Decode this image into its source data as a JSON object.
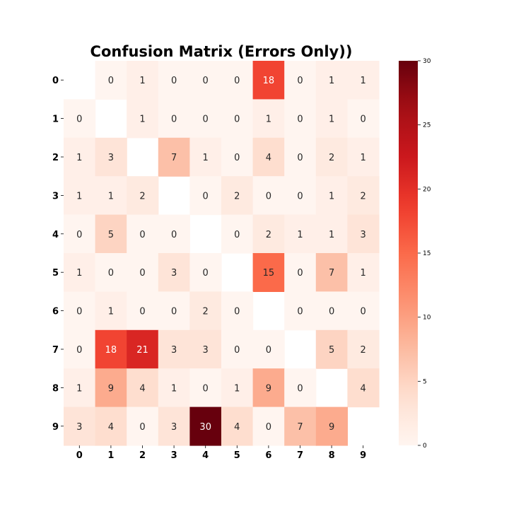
{
  "chart_data": {
    "type": "heatmap",
    "title": "Confusion Matrix (Errors Only))",
    "xlabel": "",
    "ylabel": "",
    "x_categories": [
      "0",
      "1",
      "2",
      "3",
      "4",
      "5",
      "6",
      "7",
      "8",
      "9"
    ],
    "y_categories": [
      "0",
      "1",
      "2",
      "3",
      "4",
      "5",
      "6",
      "7",
      "8",
      "9"
    ],
    "values": [
      [
        null,
        0,
        1,
        0,
        0,
        0,
        18,
        0,
        1,
        1
      ],
      [
        0,
        null,
        1,
        0,
        0,
        0,
        1,
        0,
        1,
        0
      ],
      [
        1,
        3,
        null,
        7,
        1,
        0,
        4,
        0,
        2,
        1
      ],
      [
        1,
        1,
        2,
        null,
        0,
        2,
        0,
        0,
        1,
        2
      ],
      [
        0,
        5,
        0,
        0,
        null,
        0,
        2,
        1,
        1,
        3
      ],
      [
        1,
        0,
        0,
        3,
        0,
        null,
        15,
        0,
        7,
        1
      ],
      [
        0,
        1,
        0,
        0,
        2,
        0,
        null,
        0,
        0,
        0
      ],
      [
        0,
        18,
        21,
        3,
        3,
        0,
        0,
        null,
        5,
        2
      ],
      [
        1,
        9,
        4,
        1,
        0,
        1,
        9,
        0,
        null,
        4
      ],
      [
        3,
        4,
        0,
        3,
        30,
        4,
        0,
        7,
        9,
        null
      ]
    ],
    "diagonal_masked": true,
    "colormap": "Reds",
    "colorbar": {
      "range": [
        0,
        30
      ],
      "ticks": [
        0,
        5,
        10,
        15,
        20,
        25,
        30
      ],
      "placement": "right"
    },
    "grid": false,
    "legend": "none"
  }
}
